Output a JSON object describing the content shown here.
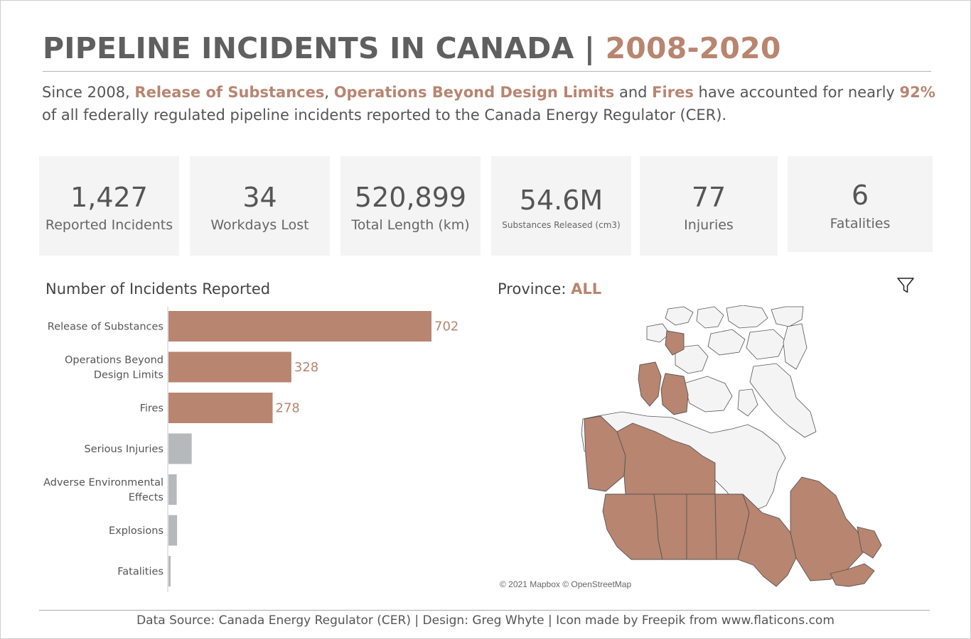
{
  "header": {
    "title_main": "PIPELINE INCIDENTS IN CANADA | ",
    "title_years": "2008-2020"
  },
  "summary": {
    "part1": "Since 2008, ",
    "hl1": "Release of Substances",
    "part2": ", ",
    "hl2": "Operations Beyond Design Limits",
    "part3": " and ",
    "hl3": "Fires",
    "part4": " have accounted for nearly ",
    "hl4": "92%",
    "part5": " of all federally regulated pipeline incidents reported to the Canada Energy Regulator (CER)."
  },
  "kpis": [
    {
      "value": "1,427",
      "label": "Reported Incidents"
    },
    {
      "value": "34",
      "label": "Workdays Lost"
    },
    {
      "value": "520,899",
      "label": "Total Length (km)"
    },
    {
      "value": "54.6M",
      "label": "Substances Released (cm3)"
    },
    {
      "value": "77",
      "label": "Injuries"
    },
    {
      "value": "6",
      "label": "Fatalities"
    }
  ],
  "chart_data": {
    "type": "bar",
    "orientation": "horizontal",
    "title": "Number of Incidents Reported",
    "categories": [
      [
        "Release of Substances"
      ],
      [
        "Operations Beyond",
        "Design Limits"
      ],
      [
        "Fires"
      ],
      [
        "Serious Injuries"
      ],
      [
        "Adverse Environmental",
        "Effects"
      ],
      [
        "Explosions"
      ],
      [
        "Fatalities"
      ]
    ],
    "values": [
      702,
      328,
      278,
      62,
      22,
      23,
      5
    ],
    "labels": [
      "702",
      "328",
      "278",
      "",
      "",
      "",
      ""
    ],
    "colors": [
      "#b88570",
      "#b88570",
      "#b88570",
      "#b6b9bb",
      "#b6b9bb",
      "#b6b9bb",
      "#b6b9bb"
    ],
    "xlim": [
      0,
      702
    ],
    "grid": false,
    "legend": "none"
  },
  "map": {
    "label": "Province: ",
    "value": "ALL",
    "credit": "© 2021 Mapbox © OpenStreetMap",
    "highlight_color": "#b88570",
    "base_color": "#f4f4f4",
    "icon": "filter-icon"
  },
  "footer": {
    "text": "Data Source: Canada Energy Regulator (CER) | Design: Greg Whyte | Icon made by Freepik from www.flaticons.com"
  },
  "colors": {
    "accent": "#b88570",
    "grey_bar": "#b6b9bb",
    "text": "#555555"
  }
}
